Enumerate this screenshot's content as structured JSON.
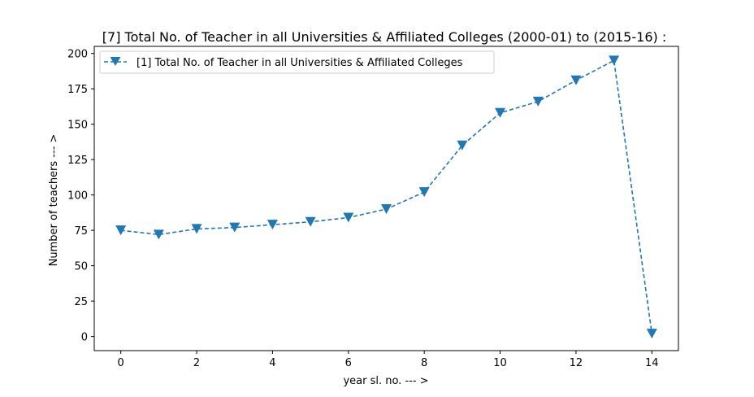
{
  "chart_data": {
    "type": "line",
    "title": "[7] Total No. of Teacher in all Universities & Affiliated Colleges (2000-01) to (2015-16) :",
    "xlabel": "year sl. no. --- >",
    "ylabel": "Number of teachers --- >",
    "xlim": [
      -0.7,
      14.7
    ],
    "ylim": [
      -10,
      205
    ],
    "x_ticks": [
      0,
      2,
      4,
      6,
      8,
      10,
      12,
      14
    ],
    "y_ticks": [
      0,
      25,
      50,
      75,
      100,
      125,
      150,
      175,
      200
    ],
    "grid": false,
    "legend_position": "upper-left",
    "series": [
      {
        "name": "[1] Total No. of Teacher in all Universities & Affiliated Colleges",
        "color": "#1f77b4",
        "line_style": "dashed",
        "marker": "triangle-down",
        "x": [
          0,
          1,
          2,
          3,
          4,
          5,
          6,
          7,
          8,
          9,
          10,
          11,
          12,
          13,
          14
        ],
        "y": [
          75,
          72,
          76,
          77,
          79,
          81,
          84,
          90,
          102,
          135,
          158,
          166,
          181,
          195,
          2
        ]
      }
    ]
  }
}
